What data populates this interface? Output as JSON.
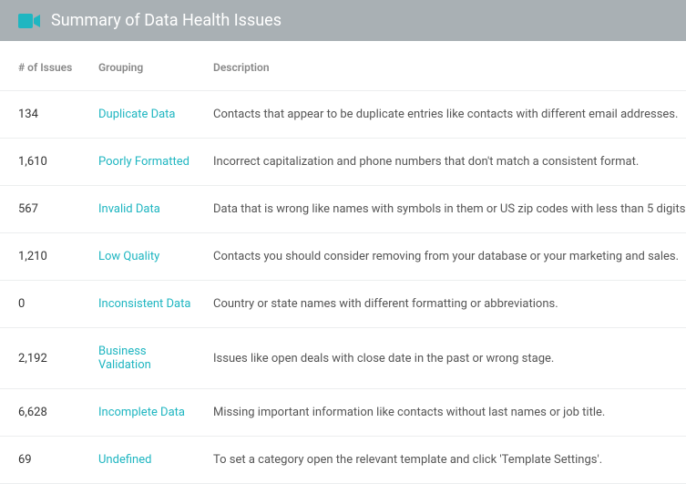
{
  "header": {
    "title": "Summary of Data Health Issues",
    "icon_color": "#1fb6c1",
    "header_bg": "#a9b0b4"
  },
  "table": {
    "columns": {
      "count": "# of Issues",
      "grouping": "Grouping",
      "description": "Description"
    },
    "rows": [
      {
        "count": "134",
        "grouping": "Duplicate Data",
        "description": "Contacts that appear to be duplicate entries like contacts with different email addresses."
      },
      {
        "count": "1,610",
        "grouping": "Poorly Formatted",
        "description": "Incorrect capitalization and phone numbers that don't match a consistent format."
      },
      {
        "count": "567",
        "grouping": "Invalid Data",
        "description": "Data that is wrong like names with symbols in them or US zip codes with less than 5 digits."
      },
      {
        "count": "1,210",
        "grouping": "Low Quality",
        "description": "Contacts you should consider removing from your database or your marketing and sales."
      },
      {
        "count": "0",
        "grouping": "Inconsistent Data",
        "description": "Country or state names with different formatting or abbreviations."
      },
      {
        "count": "2,192",
        "grouping": "Business Validation",
        "description": "Issues like open deals with close date in the past or wrong stage."
      },
      {
        "count": "6,628",
        "grouping": "Incomplete Data",
        "description": "Missing important information like contacts without last names or job title."
      },
      {
        "count": "69",
        "grouping": "Undefined",
        "description": "To set a category open the relevant template and click 'Template Settings'."
      }
    ],
    "link_color": "#1fb6c1",
    "border_color": "#eceeef"
  }
}
